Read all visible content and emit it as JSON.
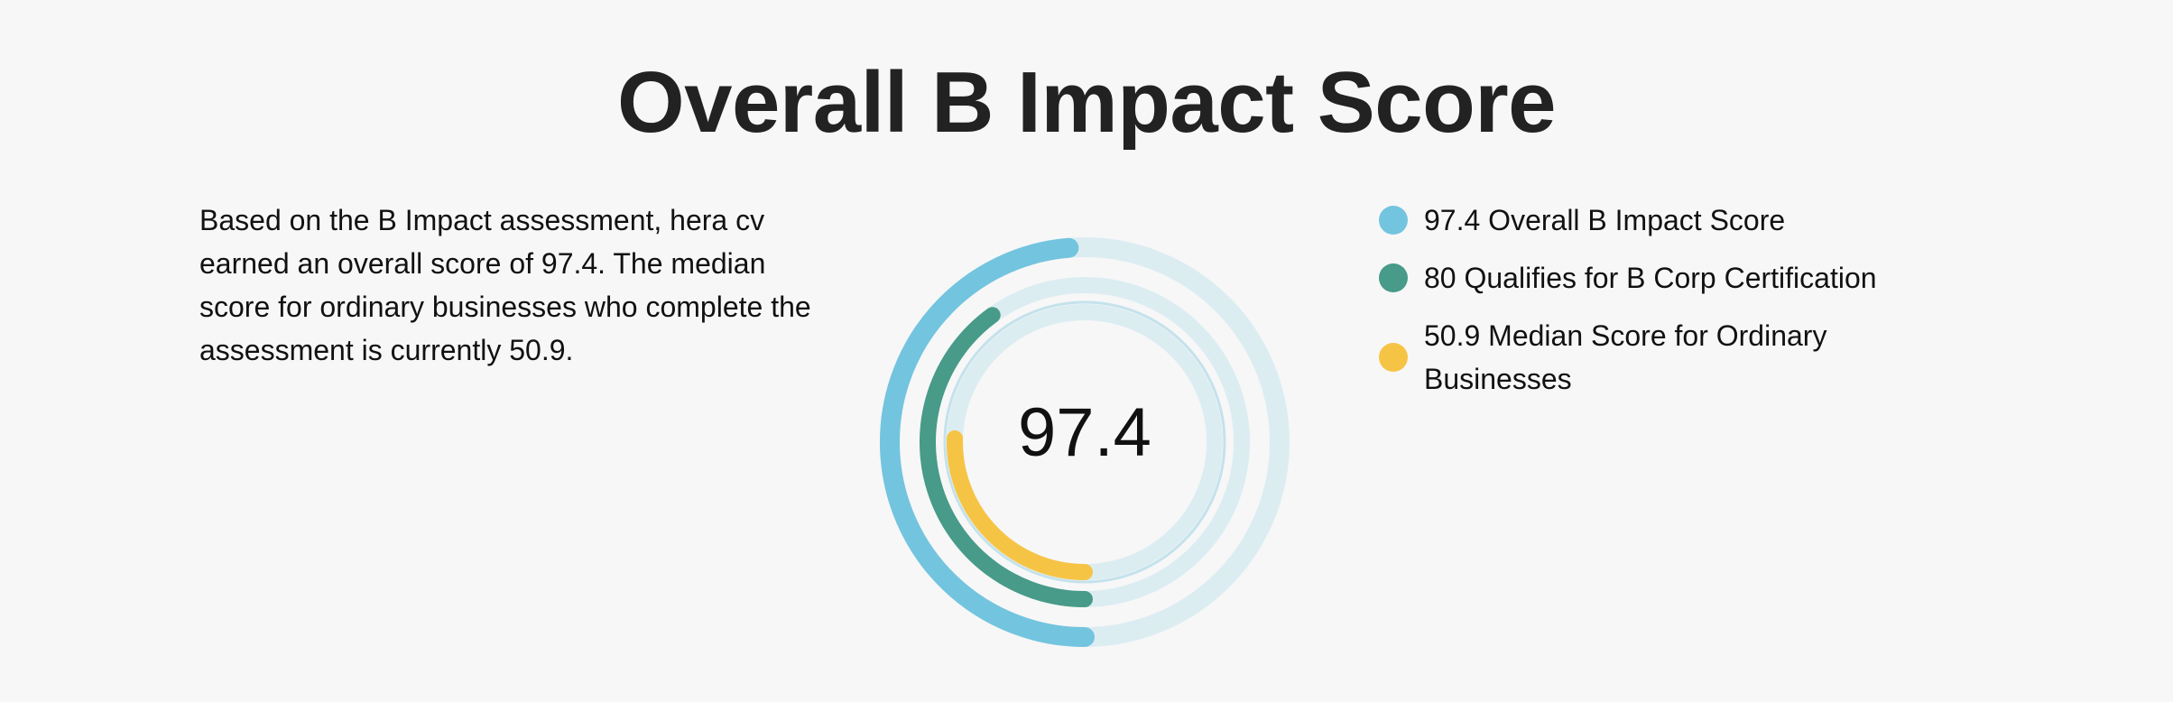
{
  "page": {
    "title": "Overall B Impact Score",
    "description": "Based on the B Impact assessment, hera cv earned an overall score of 97.4. The median score for ordinary businesses who complete the assessment is currently 50.9."
  },
  "chart_data": {
    "type": "radial-bar",
    "title": "Overall B Impact Score",
    "center_label": "97.4",
    "max": 200,
    "series": [
      {
        "name": "Overall B Impact Score",
        "value": 97.4,
        "label": "97.4 Overall B Impact Score",
        "color": "#73c4df"
      },
      {
        "name": "Qualifies for B Corp Certification",
        "value": 80,
        "label": "80 Qualifies for B Corp Certification",
        "color": "#479b88"
      },
      {
        "name": "Median Score for Ordinary Businesses",
        "value": 50.9,
        "label": "50.9 Median Score for Ordinary Businesses",
        "color": "#f6c445"
      }
    ],
    "track_color": "#dcedf2",
    "legend": "right"
  }
}
